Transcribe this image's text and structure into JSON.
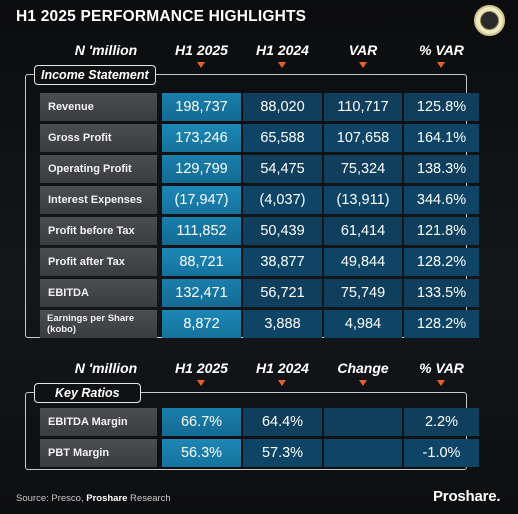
{
  "title": "H1 2025 PERFORMANCE HIGHLIGHTS",
  "income_headers": {
    "label": "N 'million",
    "h1": "H1 2025",
    "h2": "H1 2024",
    "h3": "VAR",
    "h4": "% VAR"
  },
  "income_section": "Income Statement",
  "income_rows": [
    {
      "label": "Revenue",
      "h1_2025": "198,737",
      "h1_2024": "88,020",
      "var": "110,717",
      "pct": "125.8%"
    },
    {
      "label": "Gross Profit",
      "h1_2025": "173,246",
      "h1_2024": "65,588",
      "var": "107,658",
      "pct": "164.1%"
    },
    {
      "label": "Operating Profit",
      "h1_2025": "129,799",
      "h1_2024": "54,475",
      "var": "75,324",
      "pct": "138.3%"
    },
    {
      "label": "Interest Expenses",
      "h1_2025": "(17,947)",
      "h1_2024": "(4,037)",
      "var": "(13,911)",
      "pct": "344.6%"
    },
    {
      "label": "Profit before Tax",
      "h1_2025": "111,852",
      "h1_2024": "50,439",
      "var": "61,414",
      "pct": "121.8%"
    },
    {
      "label": "Profit after Tax",
      "h1_2025": "88,721",
      "h1_2024": "38,877",
      "var": "49,844",
      "pct": "128.2%"
    },
    {
      "label": "EBITDA",
      "h1_2025": "132,471",
      "h1_2024": "56,721",
      "var": "75,749",
      "pct": "133.5%"
    },
    {
      "label": "Earnings per Share (kobo)",
      "h1_2025": "8,872",
      "h1_2024": "3,888",
      "var": "4,984",
      "pct": "128.2%"
    }
  ],
  "ratio_headers": {
    "label": "N 'million",
    "h1": "H1 2025",
    "h2": "H1 2024",
    "h3": "Change",
    "h4": "% VAR"
  },
  "ratio_section": "Key Ratios",
  "ratio_rows": [
    {
      "label": "EBITDA Margin",
      "h1_2025": "66.7%",
      "h1_2024": "64.4%",
      "change": "",
      "pct": "2.2%"
    },
    {
      "label": "PBT Margin",
      "h1_2025": "56.3%",
      "h1_2024": "57.3%",
      "change": "",
      "pct": "-1.0%"
    }
  ],
  "footer": {
    "source_prefix": "Source: Presco, ",
    "source_bold": "Proshare",
    "source_suffix": " Research",
    "brand": "Proshare."
  },
  "colors": {
    "accent_arrow": "#e4622a",
    "primary_column": "#1a7eab",
    "secondary_columns": "#0f3f5d"
  }
}
